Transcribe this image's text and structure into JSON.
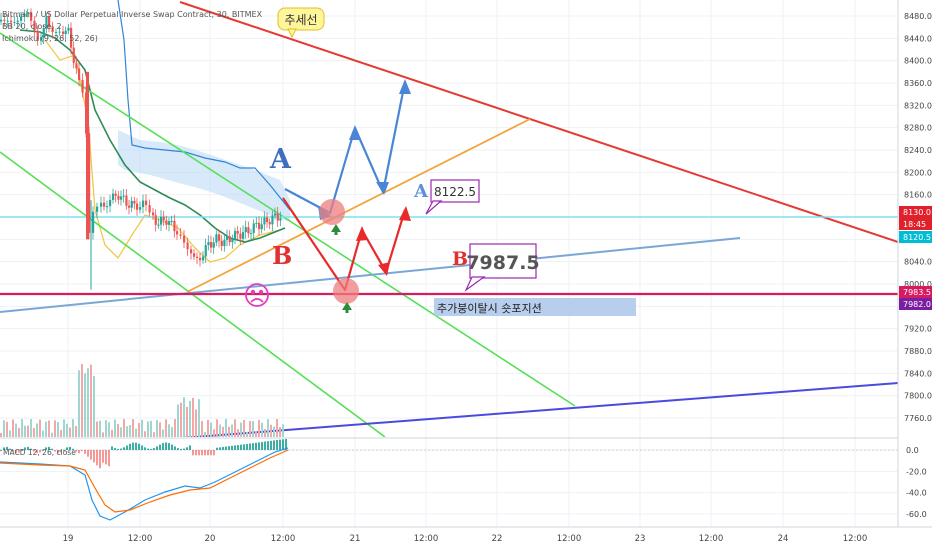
{
  "header": {
    "symbol_line": "Bitmain / US Dollar Perpetual Inverse Swap Contract, 30, BITMEX",
    "indicator_1": "BB 20, close, 2",
    "indicator_2": "Ichimoku (9, 26, 52, 26)"
  },
  "chart_data": [
    {
      "type": "candlestick",
      "title": "",
      "xlabel": "",
      "ylabel": "",
      "x_ticks": [
        "19",
        "12:00",
        "20",
        "12:00",
        "21",
        "12:00",
        "22",
        "12:00",
        "23",
        "12:00",
        "24",
        "12:00"
      ],
      "ylim": [
        7720,
        8520
      ],
      "y_ticks": [
        8480.0,
        8440.0,
        8400.0,
        8360.0,
        8320.0,
        8280.0,
        8240.0,
        8200.0,
        8160.0,
        8120.0,
        8080.0,
        8040.0,
        8000.0,
        7960.0,
        7920.0,
        7880.0,
        7840.0,
        7800.0,
        7760.0
      ],
      "price_labels": [
        {
          "value": "8130.0",
          "color": "#e0202a"
        },
        {
          "value": "18:45",
          "color": "#e0202a"
        },
        {
          "value": "8120.5",
          "color": "#00bcd4"
        },
        {
          "value": "7983.5",
          "color": "#d81b60"
        },
        {
          "value": "7982.0",
          "color": "#7b1fa2"
        }
      ],
      "horizontal_levels": [
        {
          "value": 8126,
          "color": "#7fe0ee"
        },
        {
          "value": 7985,
          "color": "#d81b60"
        }
      ],
      "annotations": {
        "trendline_label": "추세선",
        "scenario_a": "A",
        "scenario_b": "B",
        "price_a": "8122.5",
        "price_b": "7987.5",
        "support_note": "추가붕이탈시 숏포지션"
      },
      "grid": true
    },
    {
      "type": "line",
      "title": "",
      "indicator": "MACD 12, 26, close",
      "ylim": [
        -75,
        8
      ],
      "y_ticks": [
        0.0,
        -20.0,
        -40.0,
        -60.0
      ],
      "series": [
        {
          "name": "",
          "color": "#2196f3"
        },
        {
          "name": "",
          "color": "#ff6d00"
        }
      ],
      "grid": true
    }
  ]
}
